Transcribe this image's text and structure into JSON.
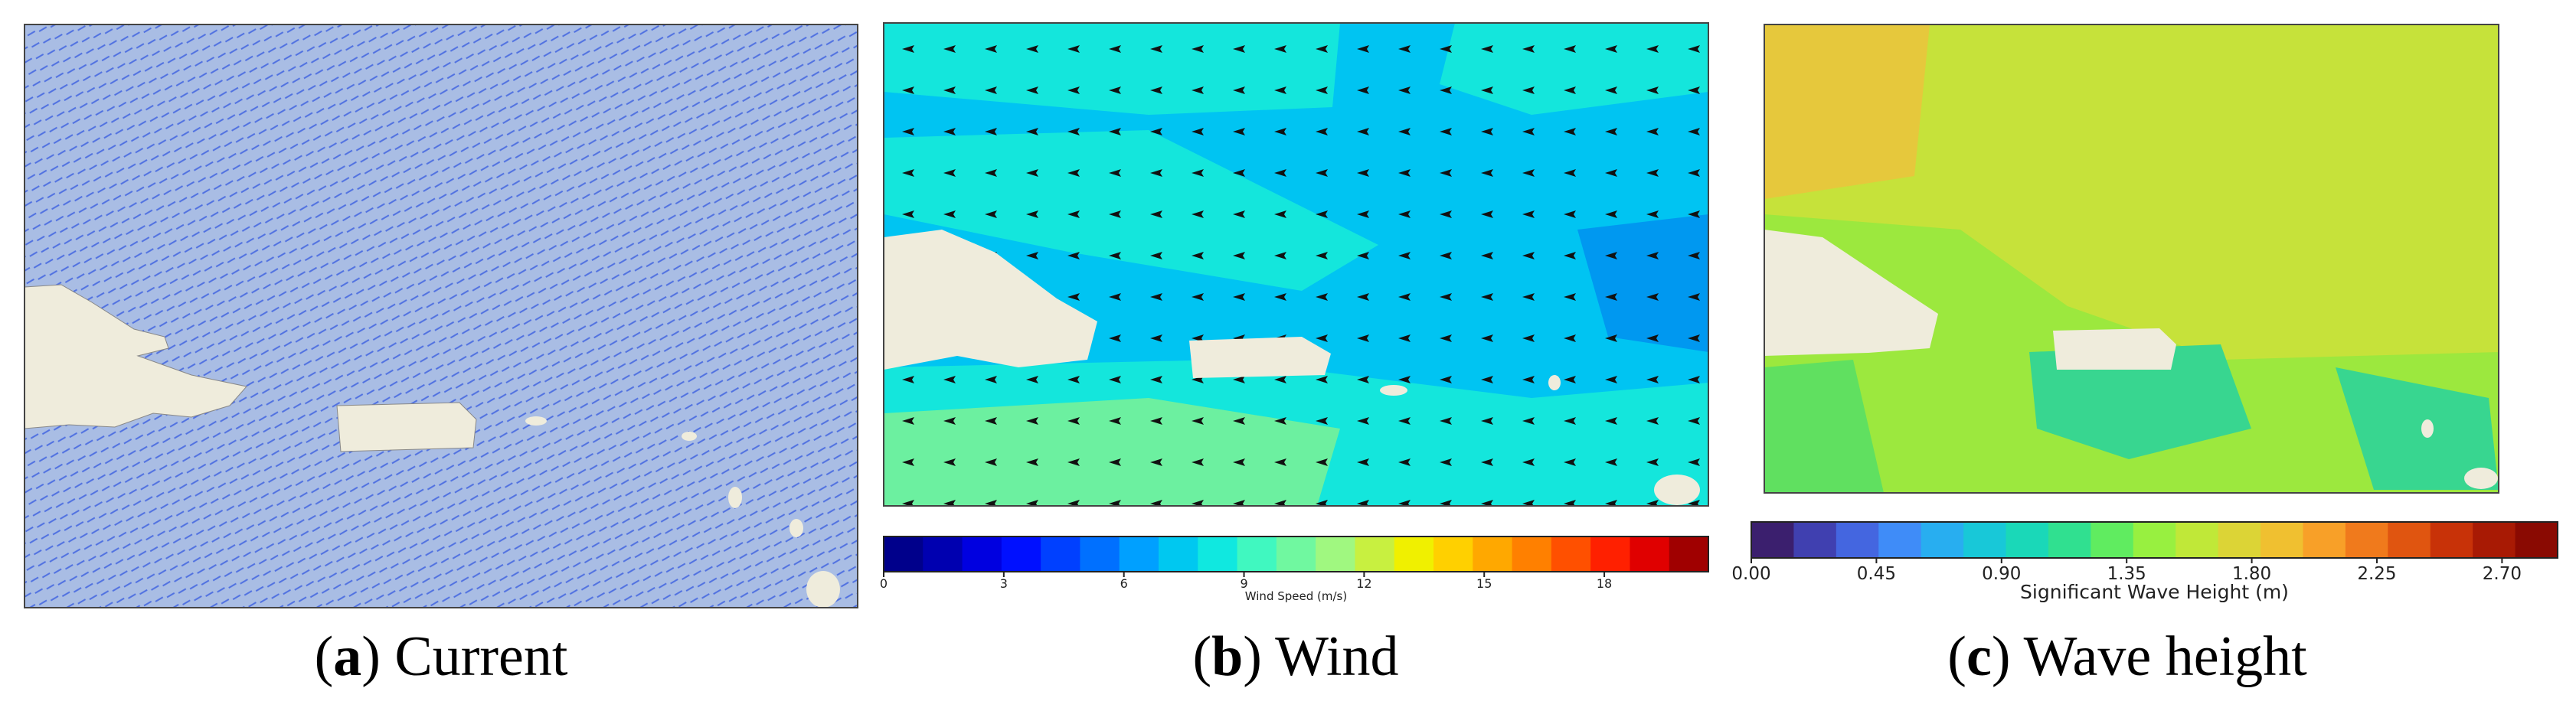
{
  "panels": [
    {
      "caption": [
        "(",
        "a",
        ") Current"
      ]
    },
    {
      "caption": [
        "(",
        "b",
        ") Wind"
      ],
      "colorbar": {
        "label": "Wind Speed (m/s)",
        "clim": [
          0,
          20.6
        ],
        "ticks": [
          0,
          3,
          6,
          9,
          12,
          15,
          18
        ],
        "colors": [
          "#00008b",
          "#0000b0",
          "#0000e0",
          "#0010ff",
          "#0040ff",
          "#0070ff",
          "#00a0ff",
          "#00c8f0",
          "#10e8e0",
          "#40f8c0",
          "#70f8a0",
          "#a0f880",
          "#c8f040",
          "#f0f000",
          "#ffd000",
          "#ffa800",
          "#ff8000",
          "#ff5000",
          "#ff2000",
          "#e00000",
          "#a00000"
        ]
      }
    },
    {
      "caption": [
        "(",
        "c",
        ") Wave height"
      ],
      "colorbar": {
        "label": "Significant Wave Height (m)",
        "clim": [
          0,
          2.9
        ],
        "ticks": [
          {
            "value": 0,
            "label": "0.00"
          },
          0.45,
          {
            "value": 0.9,
            "label": "0.90"
          },
          1.35,
          {
            "value": 1.8,
            "label": "1.80"
          },
          2.25,
          {
            "value": 2.7,
            "label": "2.70"
          }
        ],
        "colors": [
          "#3b1f6e",
          "#4040b0",
          "#4466e0",
          "#3f8cf8",
          "#28aef0",
          "#18c8d8",
          "#1ad8b8",
          "#30e090",
          "#60ec60",
          "#98f040",
          "#c0e838",
          "#dcd436",
          "#f0c030",
          "#f8a028",
          "#f07a1c",
          "#e05510",
          "#c83208",
          "#a81a04",
          "#8a0a02"
        ]
      }
    }
  ]
}
